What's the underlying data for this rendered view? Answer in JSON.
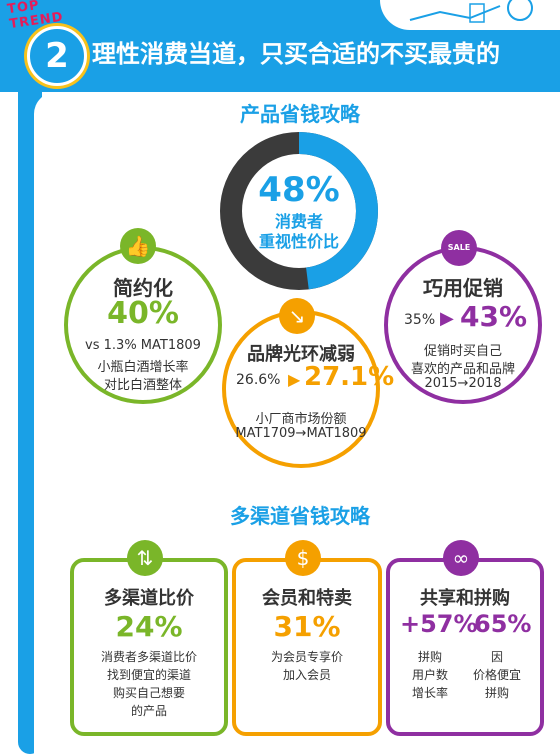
{
  "header": {
    "brand_text": "TOP TREND",
    "number": "2",
    "title": "理性消费当道，只买合适的不买最贵的"
  },
  "section1": {
    "title": "产品省钱攻略",
    "donut": {
      "percent": "48%",
      "label_line1": "消费者",
      "label_line2": "重视性价比",
      "fill_fraction": 0.48,
      "color_filled": "#1aa0e6",
      "color_rest": "#3b3b3b"
    },
    "card_left": {
      "title": "简约化",
      "big_value": "40%",
      "line1": "vs 1.3% MAT1809",
      "line2": "小瓶白酒增长率",
      "line3": "对比白酒整体",
      "color": "#7ab629",
      "icon": "thumbs-up-icon"
    },
    "card_middle": {
      "title": "品牌光环减弱",
      "from_value": "26.6%",
      "to_value": "27.1%",
      "line1": "小厂商市场份额",
      "line2": "MAT1709→MAT1809",
      "color": "#f5a000",
      "icon": "arrow-down-icon"
    },
    "card_right": {
      "title": "巧用促销",
      "from_value": "35%",
      "to_value": "43%",
      "line1": "促销时买自己",
      "line2": "喜欢的产品和品牌",
      "line3": "2015→2018",
      "color": "#8f2fa1",
      "icon": "sale-tag-icon",
      "icon_text": "SALE"
    }
  },
  "section2": {
    "title": "多渠道省钱攻略",
    "card1": {
      "title": "多渠道比价",
      "value": "24%",
      "line1": "消费者多渠道比价",
      "line2": "找到便宜的渠道",
      "line3": "购买自己想要",
      "line4": "的产品",
      "color": "#7ab629",
      "icon": "split-arrows-icon"
    },
    "card2": {
      "title": "会员和特卖",
      "value": "31%",
      "line1": "为会员专享价",
      "line2": "加入会员",
      "color": "#f5a000",
      "icon": "dollar-search-icon"
    },
    "card3": {
      "title": "共享和拼购",
      "value_a": "+57%",
      "value_b": "65%",
      "col_a_line1": "拼购",
      "col_a_line2": "用户数",
      "col_a_line3": "增长率",
      "col_b_line1": "因",
      "col_b_line2": "价格便宜",
      "col_b_line3": "拼购",
      "color": "#8f2fa1",
      "icon": "infinity-icon"
    }
  }
}
